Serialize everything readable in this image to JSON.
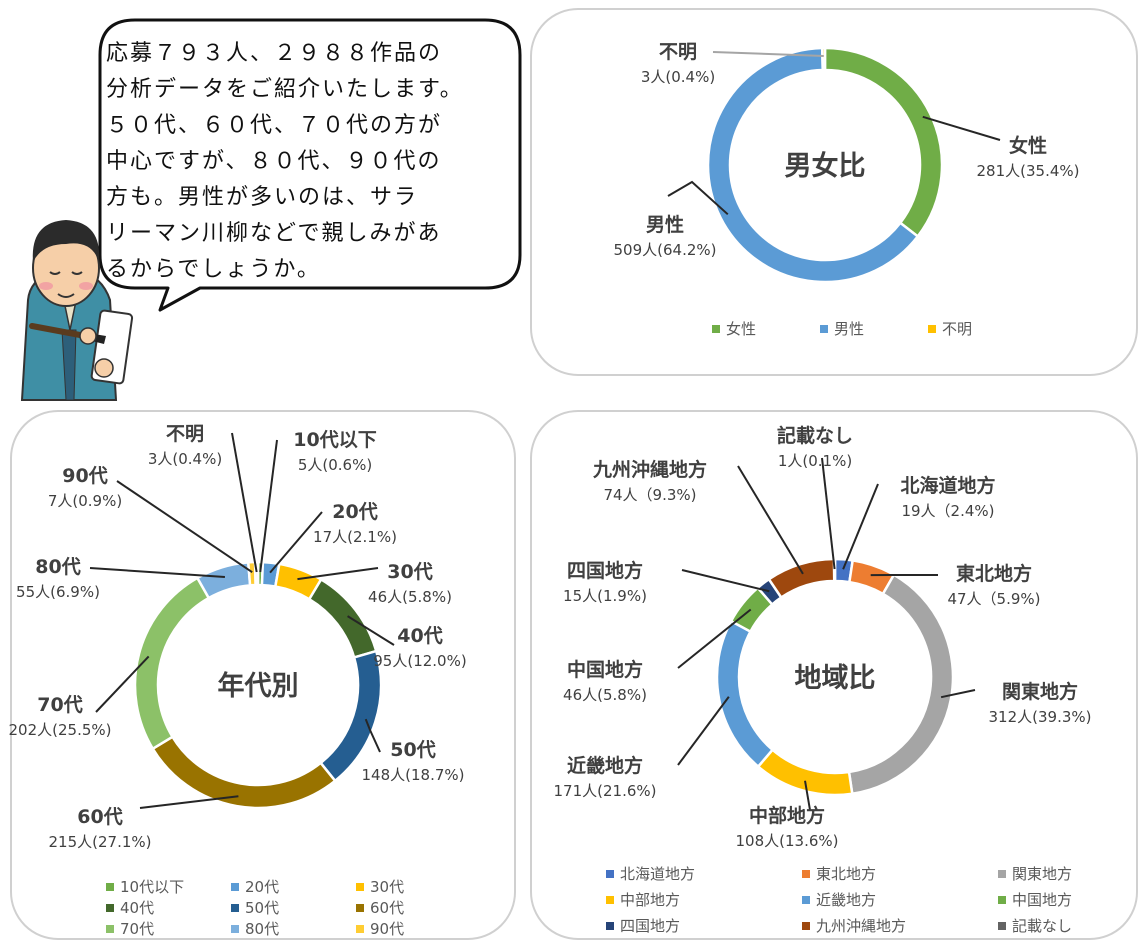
{
  "speech_bubble": {
    "lines": [
      "応募７９３人、２９８８作品の",
      "分析データをご紹介いたします。",
      "５０代、６０代、７０代の方が",
      "中心ですが、８０代、９０代の",
      "方も。男性が多いのは、サラ",
      "リーマン川柳などで親しみがあ",
      "るからでしょうか。"
    ]
  },
  "chart_data": [
    {
      "type": "pie",
      "title": "男女比",
      "categories": [
        "女性",
        "男性",
        "不明"
      ],
      "values": [
        281,
        509,
        3
      ],
      "value_labels": [
        "281人(35.4%)",
        "509人(64.2%)",
        "3人(0.4%)"
      ],
      "colors": [
        "#70ad47",
        "#5b9bd5",
        "#ffc000"
      ],
      "legend": "bottom"
    },
    {
      "type": "pie",
      "title": "年代別",
      "categories": [
        "10代以下",
        "20代",
        "30代",
        "40代",
        "50代",
        "60代",
        "70代",
        "80代",
        "90代",
        "不明"
      ],
      "values": [
        5,
        17,
        46,
        95,
        148,
        215,
        202,
        55,
        7,
        3
      ],
      "value_labels": [
        "5人(0.6%)",
        "17人(2.1%)",
        "46人(5.8%)",
        "95人(12.0%)",
        "148人(18.7%)",
        "215人(27.1%)",
        "202人(25.5%)",
        "55人(6.9%)",
        "7人(0.9%)",
        "3人(0.4%)"
      ],
      "colors": [
        "#70ad47",
        "#5b9bd5",
        "#ffc000",
        "#43682b",
        "#255e91",
        "#997300",
        "#8cc168",
        "#7cafdd",
        "#ffcd33",
        "#d9d9d9"
      ],
      "legend_categories": [
        "10代以下",
        "20代",
        "30代",
        "40代",
        "50代",
        "60代",
        "70代",
        "80代",
        "90代"
      ],
      "legend": "bottom"
    },
    {
      "type": "pie",
      "title": "地域比",
      "categories": [
        "北海道地方",
        "東北地方",
        "関東地方",
        "中部地方",
        "近畿地方",
        "中国地方",
        "四国地方",
        "九州沖縄地方",
        "記載なし"
      ],
      "values": [
        19,
        47,
        312,
        108,
        171,
        46,
        15,
        74,
        1
      ],
      "value_labels": [
        "19人（2.4%)",
        "47人（5.9%)",
        "312人(39.3%)",
        "108人(13.6%)",
        "171人(21.6%)",
        "46人(5.8%)",
        "15人(1.9%)",
        "74人（9.3%)",
        "1人(0.1%)"
      ],
      "colors": [
        "#4472c4",
        "#ed7d31",
        "#a5a5a5",
        "#ffc000",
        "#5b9bd5",
        "#70ad47",
        "#264478",
        "#9e480e",
        "#636363"
      ],
      "legend": "bottom"
    }
  ]
}
